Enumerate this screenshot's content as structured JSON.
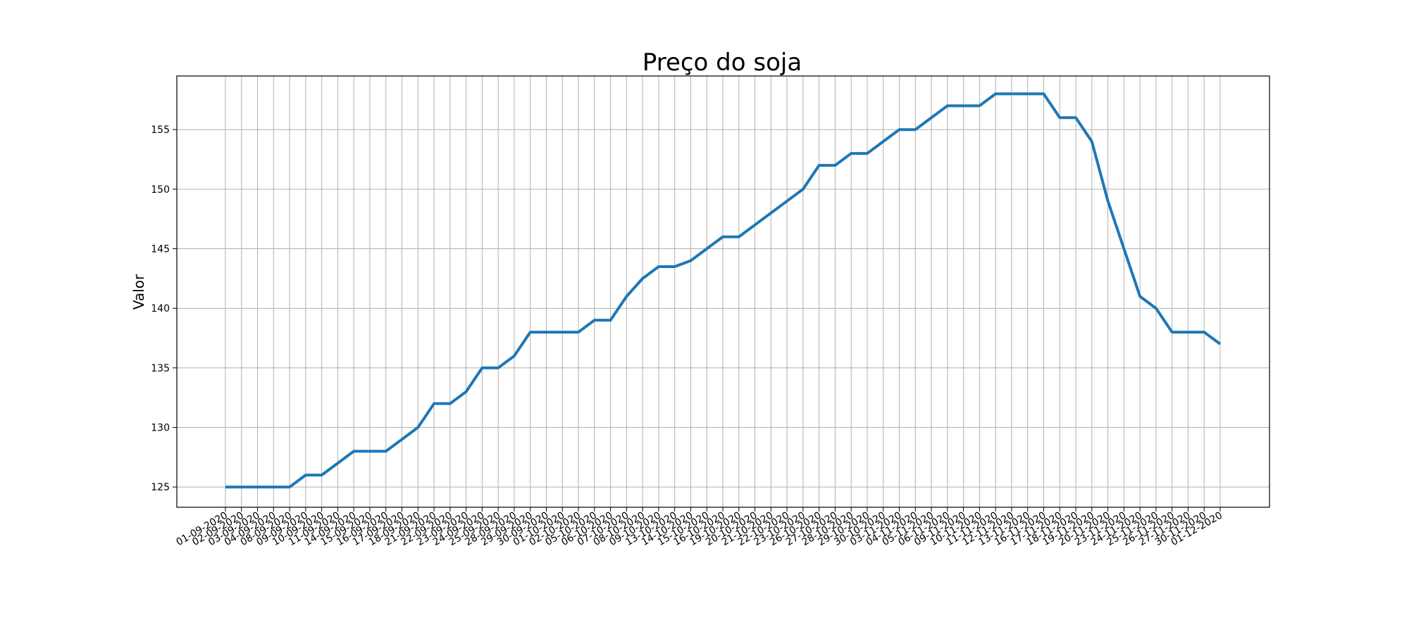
{
  "chart_data": {
    "type": "line",
    "title": "Preço do soja",
    "xlabel": "",
    "ylabel": "Valor",
    "grid": true,
    "ylim": [
      123.3,
      159.5
    ],
    "y_ticks": [
      125,
      130,
      135,
      140,
      145,
      150,
      155
    ],
    "line_color": "#1f77b4",
    "x": [
      "01-09-2020",
      "02-09-2020",
      "03-09-2020",
      "04-09-2020",
      "08-09-2020",
      "09-09-2020",
      "10-09-2020",
      "11-09-2020",
      "14-09-2020",
      "15-09-2020",
      "16-09-2020",
      "17-09-2020",
      "18-09-2020",
      "21-09-2020",
      "22-09-2020",
      "23-09-2020",
      "24-09-2020",
      "25-09-2020",
      "28-09-2020",
      "29-09-2020",
      "30-09-2020",
      "01-10-2020",
      "02-10-2020",
      "05-10-2020",
      "06-10-2020",
      "07-10-2020",
      "08-10-2020",
      "09-10-2020",
      "13-10-2020",
      "14-10-2020",
      "15-10-2020",
      "16-10-2020",
      "19-10-2020",
      "20-10-2020",
      "21-10-2020",
      "22-10-2020",
      "23-10-2020",
      "26-10-2020",
      "27-10-2020",
      "28-10-2020",
      "29-10-2020",
      "30-10-2020",
      "03-11-2020",
      "04-11-2020",
      "05-11-2020",
      "06-11-2020",
      "09-11-2020",
      "10-11-2020",
      "11-11-2020",
      "12-11-2020",
      "13-11-2020",
      "16-11-2020",
      "17-11-2020",
      "18-11-2020",
      "19-11-2020",
      "20-11-2020",
      "23-11-2020",
      "24-11-2020",
      "25-11-2020",
      "26-11-2020",
      "27-11-2020",
      "30-11-2020",
      "01-12-2020"
    ],
    "series": [
      {
        "values": [
          125,
          125,
          125,
          125,
          125,
          126,
          126,
          127,
          128,
          128,
          128,
          129,
          130,
          132,
          132,
          133,
          135,
          135,
          136,
          138,
          138,
          138,
          138,
          139,
          139,
          141,
          142.5,
          143.5,
          143.5,
          144,
          145,
          146,
          146,
          147,
          148,
          149,
          150,
          152,
          152,
          153,
          153,
          154,
          155,
          155,
          156,
          157,
          157,
          157,
          158,
          158,
          158,
          158,
          156,
          156,
          154,
          149,
          145,
          141,
          140,
          138,
          138,
          138,
          137
        ]
      }
    ]
  }
}
